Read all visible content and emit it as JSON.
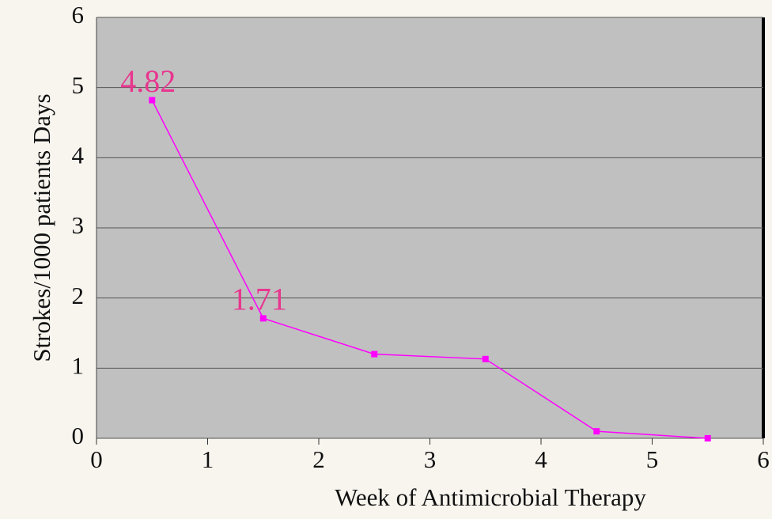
{
  "chart_data": {
    "type": "line",
    "xlabel": "Week of Antimicrobial Therapy",
    "ylabel": "Strokes/1000 patients Days",
    "x": [
      0.5,
      1.5,
      2.5,
      3.5,
      4.5,
      5.5
    ],
    "series": [
      {
        "color": "#ff00ff",
        "values": [
          4.82,
          1.71,
          1.2,
          1.13,
          0.1,
          0
        ],
        "value_labels": [
          "4.82",
          "1.71",
          null,
          null,
          null,
          null
        ],
        "label_color": "#e8368f"
      }
    ],
    "xlim": [
      0,
      6
    ],
    "xticks": [
      0,
      1,
      2,
      3,
      4,
      5,
      6
    ],
    "ylim": [
      0,
      6
    ],
    "yticks": [
      0,
      1,
      2,
      3,
      4,
      5,
      6
    ],
    "grid": true
  }
}
